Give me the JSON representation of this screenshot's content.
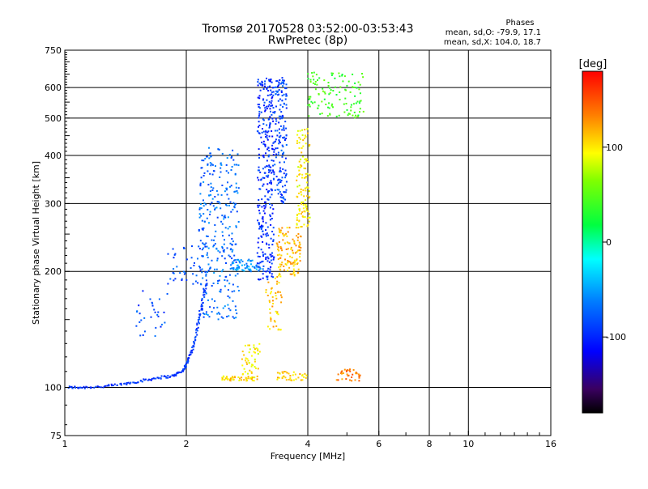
{
  "chart_data": {
    "type": "scatter",
    "title": "Tromsø 20170528 03:52:00-03:53:43",
    "subtitle": "RwPretec (8p)",
    "xlabel": "Frequency [MHz]",
    "ylabel": "Stationary phase Virtual Height [km]",
    "x_scale": "log2",
    "y_scale": "log",
    "xlim": [
      1,
      16
    ],
    "ylim": [
      75,
      750
    ],
    "x_ticks": [
      {
        "value": 1,
        "label": "1"
      },
      {
        "value": 2,
        "label": "2"
      },
      {
        "value": 4,
        "label": "4"
      },
      {
        "value": 6,
        "label": "6"
      },
      {
        "value": 8,
        "label": "8"
      },
      {
        "value": 10,
        "label": "10"
      },
      {
        "value": 16,
        "label": "16"
      }
    ],
    "x_gridlines": [
      1,
      2,
      4,
      6,
      8,
      10
    ],
    "x_minor": [
      5,
      7,
      9,
      11,
      12,
      13,
      14,
      15
    ],
    "y_ticks": [
      {
        "value": 75,
        "label": "75"
      },
      {
        "value": 100,
        "label": "100"
      },
      {
        "value": 200,
        "label": "200"
      },
      {
        "value": 300,
        "label": "300"
      },
      {
        "value": 400,
        "label": "400"
      },
      {
        "value": 500,
        "label": "500"
      },
      {
        "value": 600,
        "label": "600"
      },
      {
        "value": 750,
        "label": "750"
      }
    ],
    "y_gridlines": [
      100,
      200,
      300,
      400,
      500,
      600
    ],
    "grid": true,
    "phases_info": {
      "title": "Phases",
      "line_o": "mean, sd,O: -79.9, 17.1",
      "line_x": "mean, sd,X: 104.0, 18.7"
    },
    "colorbar": {
      "label": "[deg]",
      "range": [
        -180,
        180
      ],
      "ticks": [
        {
          "value": 100,
          "label": "100"
        },
        {
          "value": 0,
          "label": "0"
        },
        {
          "value": -100,
          "label": "-100"
        }
      ]
    },
    "clusters": [
      {
        "trace": "E-layer base",
        "phase": -95,
        "points": [
          [
            1.02,
            100
          ],
          [
            1.1,
            100
          ],
          [
            1.25,
            100.5
          ],
          [
            1.4,
            102
          ],
          [
            1.55,
            104
          ],
          [
            1.7,
            106
          ],
          [
            1.85,
            107
          ],
          [
            1.95,
            110
          ],
          [
            2.0,
            114
          ]
        ]
      },
      {
        "trace": "E-layer rise",
        "phase": -90,
        "points": [
          [
            2.0,
            115
          ],
          [
            2.05,
            122
          ],
          [
            2.1,
            132
          ],
          [
            2.15,
            150
          ],
          [
            2.2,
            170
          ],
          [
            2.25,
            190
          ]
        ]
      },
      {
        "trace": "F1 trace",
        "phase": -70,
        "x": [
          2.15,
          2.7
        ],
        "y": [
          150,
          420
        ],
        "n": 300
      },
      {
        "trace": "F1 low branch",
        "phase": -80,
        "x": [
          1.8,
          2.3
        ],
        "y": [
          185,
          235
        ],
        "n": 50
      },
      {
        "trace": "F2 blue column",
        "phase": -95,
        "x": [
          3.0,
          3.3
        ],
        "y": [
          190,
          640
        ],
        "n": 320
      },
      {
        "trace": "F2 blue column 2",
        "phase": -85,
        "x": [
          3.3,
          3.55
        ],
        "y": [
          300,
          640
        ],
        "n": 160
      },
      {
        "trace": "F2 cusp",
        "phase": -55,
        "x": [
          2.6,
          3.1
        ],
        "y": [
          200,
          215
        ],
        "n": 60
      },
      {
        "trace": "X-mode orange",
        "phase": 115,
        "x": [
          3.35,
          3.85
        ],
        "y": [
          195,
          260
        ],
        "n": 120
      },
      {
        "trace": "X-mode yellow column",
        "phase": 100,
        "x": [
          3.75,
          4.05
        ],
        "y": [
          260,
          470
        ],
        "n": 120
      },
      {
        "trace": "X-mode low",
        "phase": 110,
        "x": [
          3.15,
          3.45
        ],
        "y": [
          140,
          200
        ],
        "n": 50
      },
      {
        "trace": "X-mode E",
        "phase": 105,
        "x": [
          2.45,
          3.0
        ],
        "y": [
          104,
          107
        ],
        "n": 50
      },
      {
        "trace": "X-mode E hump",
        "phase": 100,
        "x": [
          2.75,
          3.05
        ],
        "y": [
          108,
          130
        ],
        "n": 45
      },
      {
        "trace": "X-mode E2",
        "phase": 110,
        "x": [
          3.35,
          4.0
        ],
        "y": [
          104,
          110
        ],
        "n": 40
      },
      {
        "trace": "X-mode E3",
        "phase": 135,
        "x": [
          4.7,
          5.4
        ],
        "y": [
          104,
          112
        ],
        "n": 35
      },
      {
        "trace": "top cyan-orange",
        "phase": 40,
        "x": [
          4.0,
          5.5
        ],
        "y": [
          500,
          660
        ],
        "n": 120
      },
      {
        "trace": "low sporadic",
        "phase": -85,
        "x": [
          1.5,
          1.8
        ],
        "y": [
          135,
          180
        ],
        "n": 30
      }
    ]
  }
}
